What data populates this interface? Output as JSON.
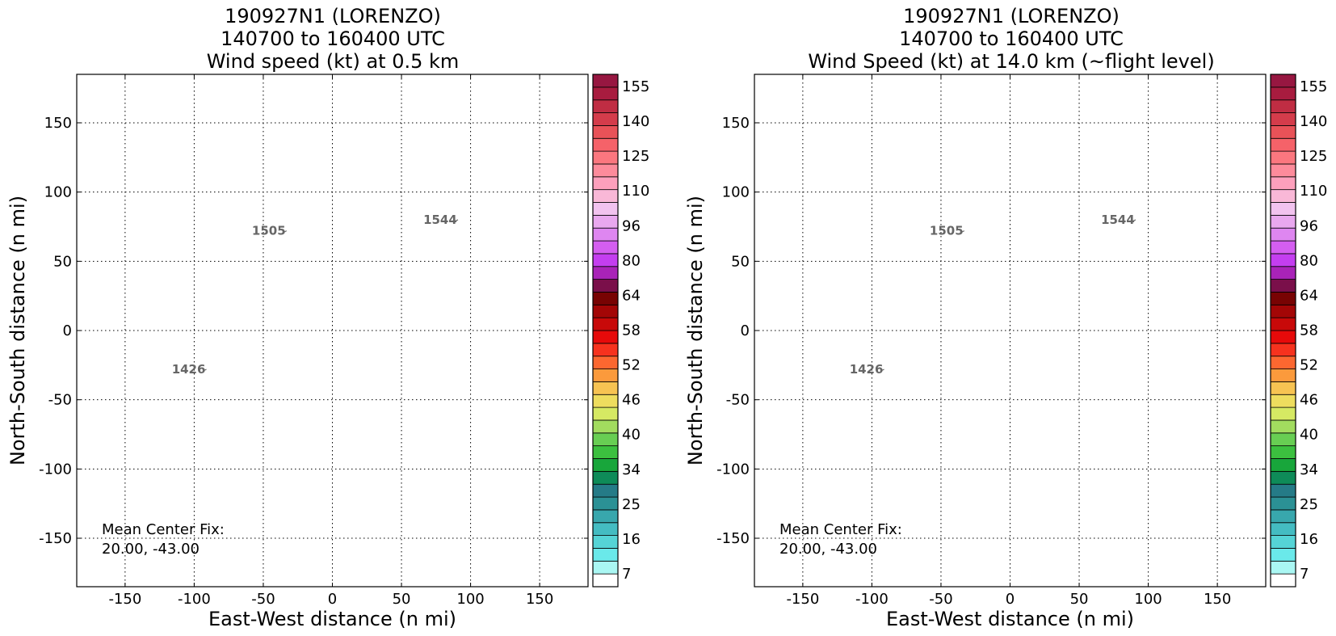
{
  "chart_data": [
    {
      "type": "scatter",
      "title": [
        "190927N1 (LORENZO)",
        "140700 to 160400 UTC",
        "Wind speed (kt) at 0.5 km"
      ],
      "xlabel": "East-West distance (n mi)",
      "ylabel": "North-South distance (n mi)",
      "xlim": [
        -185,
        185
      ],
      "ylim": [
        -185,
        185
      ],
      "xticks": [
        -150,
        -100,
        -50,
        0,
        50,
        100,
        150
      ],
      "yticks": [
        150,
        100,
        50,
        0,
        -50,
        -100,
        -150
      ],
      "grid": true,
      "time_labels": [
        {
          "label": "1426",
          "x": -104,
          "y": -28
        },
        {
          "label": "1505",
          "x": -46,
          "y": 72
        },
        {
          "label": "1544",
          "x": 78,
          "y": 80
        }
      ],
      "note": [
        "Mean Center Fix:",
        "20.00, -43.00"
      ],
      "colorbar": {
        "tick_labels": [
          "155",
          "140",
          "125",
          "110",
          "96",
          "80",
          "64",
          "58",
          "52",
          "46",
          "40",
          "34",
          "25",
          "16",
          "7"
        ],
        "colors": [
          "#ffffff",
          "#aaf7f3",
          "#6ae9ea",
          "#55d4d6",
          "#44bcc2",
          "#38a7ad",
          "#2b9195",
          "#257b87",
          "#0e8b58",
          "#18a63b",
          "#3cc03f",
          "#68ce53",
          "#a2dc5f",
          "#d6e963",
          "#eedd5e",
          "#f7c352",
          "#fb9a3c",
          "#fc6730",
          "#f6321e",
          "#e60a0a",
          "#c80909",
          "#a30606",
          "#780303",
          "#7a0f4a",
          "#a923b8",
          "#c43ef0",
          "#d45ef0",
          "#de86f0",
          "#e9a8ef",
          "#f2c3ef",
          "#f9b8d7",
          "#fda0bc",
          "#fd8b9b",
          "#fb777f",
          "#f56269",
          "#e85258",
          "#d43c4b",
          "#c02d43",
          "#a81c3f",
          "#971741"
        ]
      }
    },
    {
      "type": "scatter",
      "title": [
        "190927N1 (LORENZO)",
        "140700 to 160400 UTC",
        "Wind Speed (kt) at 14.0 km (~flight level)"
      ],
      "xlabel": "East-West distance (n mi)",
      "ylabel": "North-South distance (n mi)",
      "xlim": [
        -185,
        185
      ],
      "ylim": [
        -185,
        185
      ],
      "xticks": [
        -150,
        -100,
        -50,
        0,
        50,
        100,
        150
      ],
      "yticks": [
        150,
        100,
        50,
        0,
        -50,
        -100,
        -150
      ],
      "grid": true,
      "time_labels": [
        {
          "label": "1426",
          "x": -104,
          "y": -28
        },
        {
          "label": "1505",
          "x": -46,
          "y": 72
        },
        {
          "label": "1544",
          "x": 78,
          "y": 80
        }
      ],
      "note": [
        "Mean Center Fix:",
        "20.00, -43.00"
      ],
      "colorbar": {
        "tick_labels": [
          "155",
          "140",
          "125",
          "110",
          "96",
          "80",
          "64",
          "58",
          "52",
          "46",
          "40",
          "34",
          "25",
          "16",
          "7"
        ],
        "colors": [
          "#ffffff",
          "#aaf7f3",
          "#6ae9ea",
          "#55d4d6",
          "#44bcc2",
          "#38a7ad",
          "#2b9195",
          "#257b87",
          "#0e8b58",
          "#18a63b",
          "#3cc03f",
          "#68ce53",
          "#a2dc5f",
          "#d6e963",
          "#eedd5e",
          "#f7c352",
          "#fb9a3c",
          "#fc6730",
          "#f6321e",
          "#e60a0a",
          "#c80909",
          "#a30606",
          "#780303",
          "#7a0f4a",
          "#a923b8",
          "#c43ef0",
          "#d45ef0",
          "#de86f0",
          "#e9a8ef",
          "#f2c3ef",
          "#f9b8d7",
          "#fda0bc",
          "#fd8b9b",
          "#fb777f",
          "#f56269",
          "#e85258",
          "#d43c4b",
          "#c02d43",
          "#a81c3f",
          "#971741"
        ]
      }
    }
  ]
}
